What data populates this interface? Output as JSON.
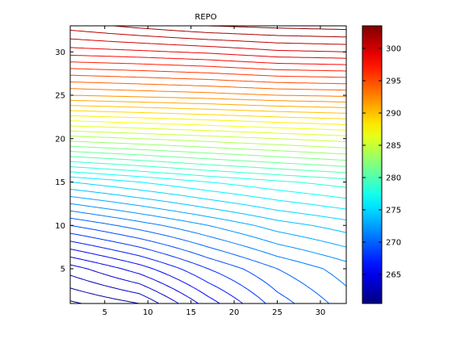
{
  "chart_data": {
    "type": "contour",
    "title": "REPO",
    "xlabel": "",
    "ylabel": "",
    "xlim": [
      1,
      33
    ],
    "ylim": [
      1,
      33
    ],
    "x_ticks": [
      5,
      10,
      15,
      20,
      25,
      30
    ],
    "y_ticks": [
      5,
      10,
      15,
      20,
      25,
      30
    ],
    "colormap": "jet",
    "colorbar": {
      "range": [
        260.5,
        303.5
      ],
      "ticks": [
        265,
        270,
        275,
        280,
        285,
        290,
        295,
        300
      ]
    },
    "contour_levels": {
      "start": 261,
      "end": 303,
      "step": 1
    },
    "field_samples": {
      "description_of_grid": "values at (x, y) sampled on the chart grid",
      "x": [
        1,
        9,
        17,
        25,
        33
      ],
      "y": [
        1,
        5,
        10,
        15,
        20,
        25,
        30,
        33
      ],
      "z": [
        [
          260.8,
          262.0,
          265.5,
          268.5,
          270.5
        ],
        [
          263.5,
          265.5,
          268.0,
          270.0,
          271.5
        ],
        [
          269.0,
          270.5,
          272.0,
          273.5,
          274.5
        ],
        [
          275.0,
          276.0,
          277.0,
          277.8,
          278.5
        ],
        [
          283.5,
          284.0,
          284.5,
          285.0,
          285.5
        ],
        [
          292.0,
          292.3,
          292.6,
          293.0,
          293.2
        ],
        [
          298.5,
          298.8,
          299.2,
          299.8,
          300.0
        ],
        [
          301.5,
          302.3,
          303.0,
          303.3,
          303.5
        ]
      ]
    },
    "grid": false,
    "legend": "none"
  }
}
